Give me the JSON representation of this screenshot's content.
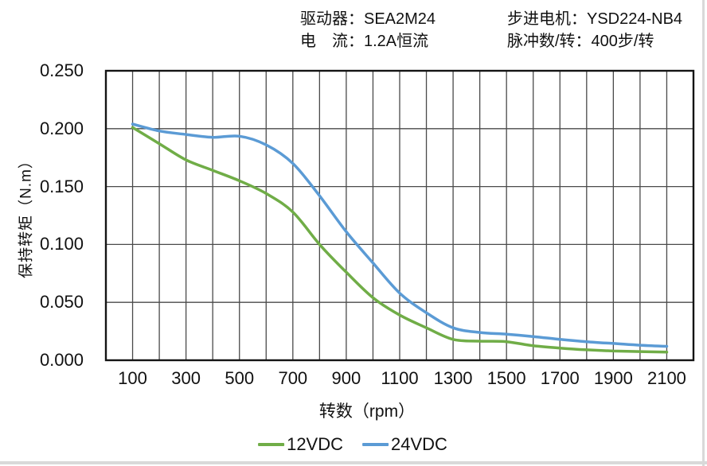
{
  "header": {
    "driver": "驱动器：SEA2M24",
    "current": "电　流：1.2A恒流",
    "motor": "步进电机：YSD224-NB4",
    "pulses": "脉冲数/转：400步/转"
  },
  "chart_data": {
    "type": "line",
    "title": "",
    "xlabel": "转数（rpm）",
    "ylabel": "保持转矩（N.m）",
    "xlim": [
      0,
      2200
    ],
    "ylim": [
      0,
      0.25
    ],
    "grid": "on",
    "x_grid_step": 100,
    "y_grid_step": 0.05,
    "legend_position": "bottom",
    "x_tick_labels": [
      100,
      300,
      500,
      700,
      900,
      1100,
      1300,
      1500,
      1700,
      1900,
      2100
    ],
    "y_tick_values": [
      0,
      0.05,
      0.1,
      0.15,
      0.2,
      0.25
    ],
    "y_tick_labels": [
      "0.000",
      "0.050",
      "0.100",
      "0.150",
      "0.200",
      "0.250"
    ],
    "x": [
      100,
      200,
      300,
      400,
      500,
      600,
      700,
      800,
      900,
      1000,
      1100,
      1200,
      1300,
      1400,
      1500,
      1600,
      1700,
      1800,
      1900,
      2000,
      2100
    ],
    "series": [
      {
        "name": "12VDC",
        "color": "#70AD47",
        "values": [
          0.201,
          0.187,
          0.173,
          0.164,
          0.155,
          0.144,
          0.128,
          0.1,
          0.076,
          0.054,
          0.039,
          0.028,
          0.018,
          0.0165,
          0.016,
          0.0125,
          0.0105,
          0.009,
          0.008,
          0.0075,
          0.007
        ]
      },
      {
        "name": "24VDC",
        "color": "#5B9BD5",
        "values": [
          0.204,
          0.198,
          0.195,
          0.1925,
          0.1935,
          0.186,
          0.17,
          0.142,
          0.111,
          0.084,
          0.058,
          0.041,
          0.028,
          0.024,
          0.0225,
          0.0205,
          0.018,
          0.016,
          0.0145,
          0.013,
          0.012
        ]
      }
    ]
  },
  "style": {
    "grid_color": "#4a4a4a",
    "border_color": "#141414",
    "text_color": "#111111"
  }
}
